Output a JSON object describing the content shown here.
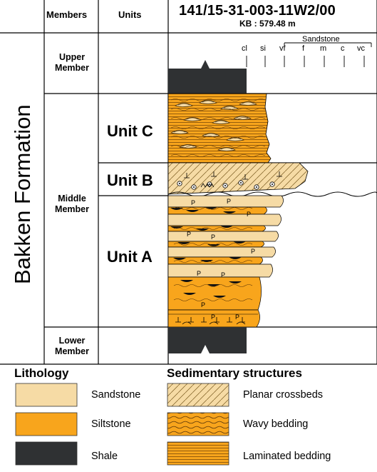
{
  "header": {
    "members_label": "Members",
    "units_label": "Units",
    "well_id": "141/15-31-003-11W2/00",
    "kb": "KB : 579.48 m"
  },
  "formation": "Bakken Formation",
  "members": {
    "upper": [
      "Upper",
      "Member"
    ],
    "middle": [
      "Middle",
      "Member"
    ],
    "lower": [
      "Lower",
      "Member"
    ]
  },
  "units": {
    "c": "Unit C",
    "b": "Unit B",
    "a": "Unit A"
  },
  "grain_scale": {
    "group_label": "Sandstone",
    "ticks": [
      "cl",
      "si",
      "vf",
      "f",
      "m",
      "c",
      "vc"
    ]
  },
  "legend": {
    "lithology_title": "Lithology",
    "structures_title": "Sedimentary structures",
    "lithology": [
      {
        "label": "Sandstone",
        "color": "#f6dba5"
      },
      {
        "label": "Siltstone",
        "color": "#f8a51c"
      },
      {
        "label": "Shale",
        "color": "#2f3133"
      }
    ],
    "structures": [
      {
        "label": "Planar crossbeds",
        "pattern": "crossbed"
      },
      {
        "label": "Wavy bedding",
        "pattern": "wavy"
      },
      {
        "label": "Laminated bedding",
        "pattern": "laminated"
      }
    ]
  },
  "colors": {
    "sandstone": "#f6dba5",
    "siltstone": "#f8a51c",
    "shale": "#2f3133",
    "line": "#000000"
  }
}
